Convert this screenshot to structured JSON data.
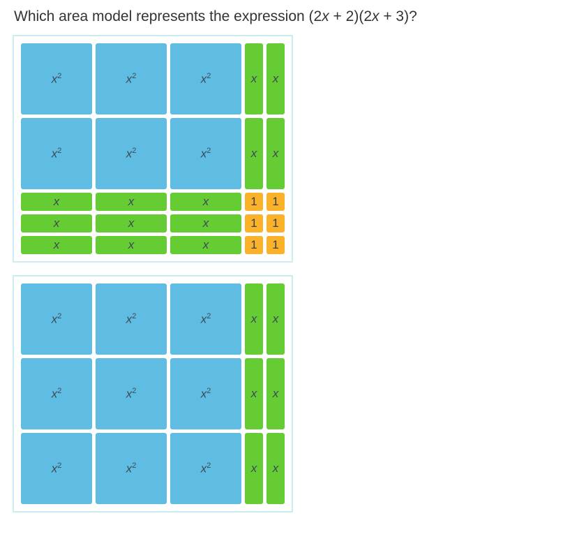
{
  "question": {
    "prefix": "Which area model represents the expression (2",
    "x1": "x",
    "mid1": " + 2)(2",
    "x2": "x",
    "suffix": " + 3)?"
  },
  "colors": {
    "x2": "#5fbde3",
    "x_h": "#66cc33",
    "x_v": "#66cc33",
    "unit": "#f9b229",
    "frame_border": "#cdeef0",
    "bg": "#ffffff"
  },
  "sizes": {
    "big": 102,
    "small_w": 26,
    "small_h": 26,
    "gap": 5
  },
  "labels": {
    "x2_html": "x<sup>2</sup>",
    "x": "x",
    "unit": "1"
  },
  "models": [
    {
      "rows": [
        {
          "height": "big",
          "cells": [
            "x2",
            "x2",
            "x2",
            "xv",
            "xv"
          ]
        },
        {
          "height": "big",
          "cells": [
            "x2",
            "x2",
            "x2",
            "xv",
            "xv"
          ]
        },
        {
          "height": "small",
          "cells": [
            "xh",
            "xh",
            "xh",
            "u",
            "u"
          ]
        },
        {
          "height": "small",
          "cells": [
            "xh",
            "xh",
            "xh",
            "u",
            "u"
          ]
        },
        {
          "height": "small",
          "cells": [
            "xh",
            "xh",
            "xh",
            "u",
            "u"
          ]
        }
      ]
    },
    {
      "rows": [
        {
          "height": "big",
          "cells": [
            "x2",
            "x2",
            "x2",
            "xv",
            "xv"
          ]
        },
        {
          "height": "big",
          "cells": [
            "x2",
            "x2",
            "x2",
            "xv",
            "xv"
          ]
        },
        {
          "height": "big",
          "cells": [
            "x2",
            "x2",
            "x2",
            "xv",
            "xv"
          ]
        }
      ]
    }
  ]
}
